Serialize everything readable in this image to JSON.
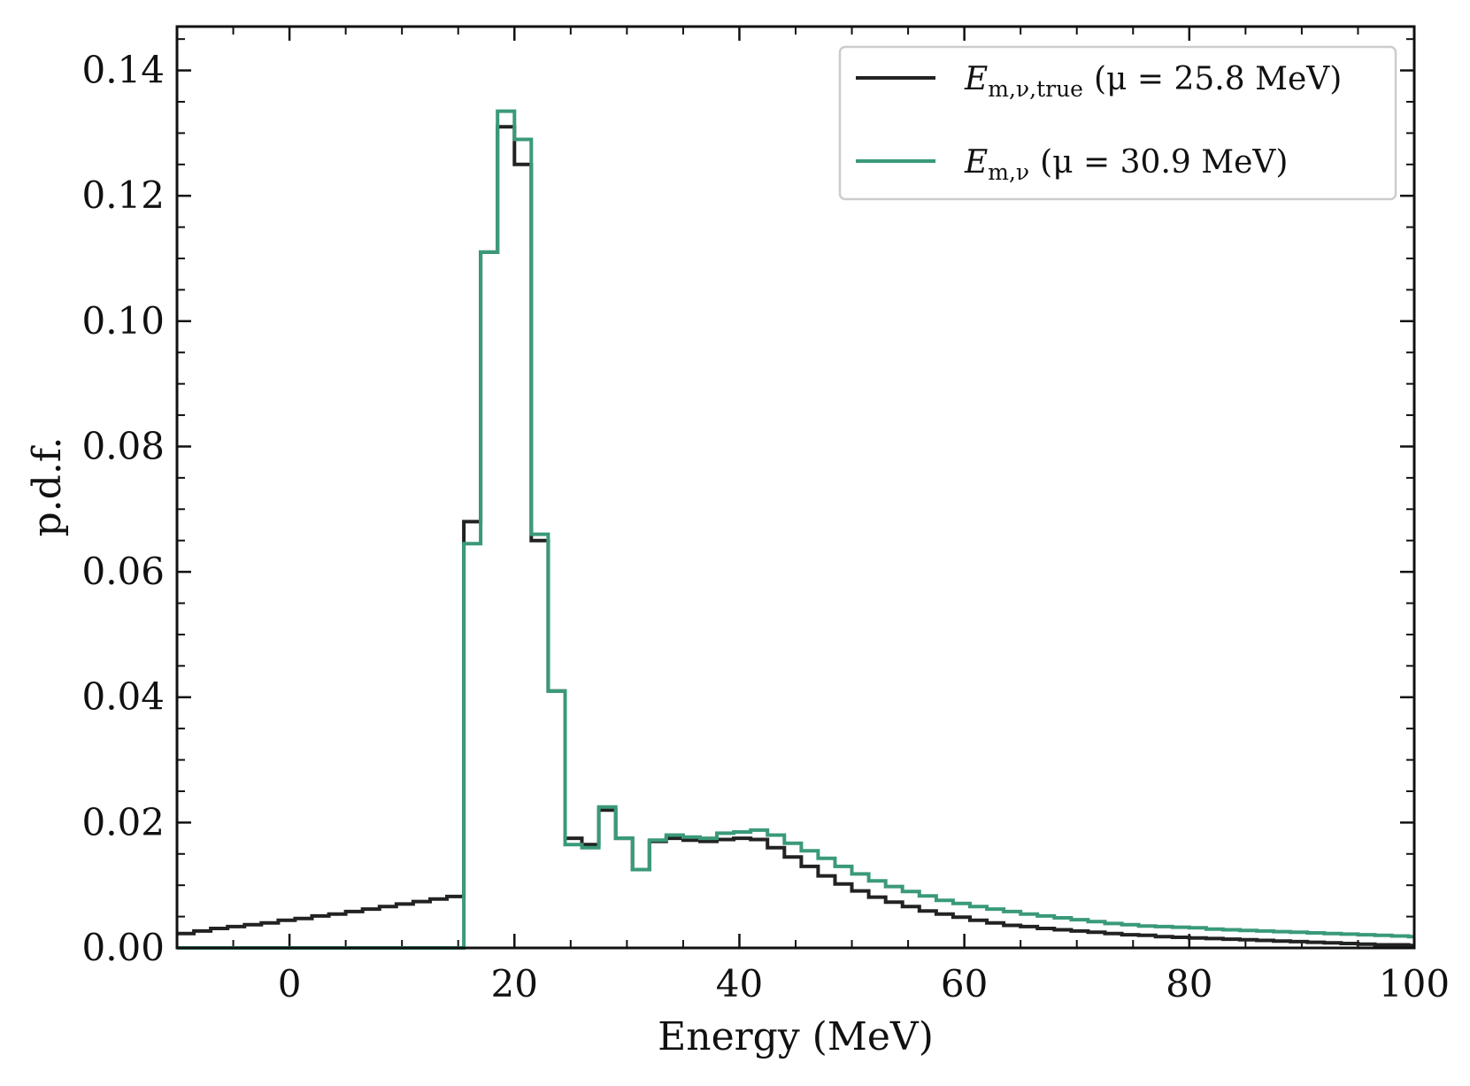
{
  "chart_data": {
    "type": "line",
    "title": "",
    "xlabel": "Energy (MeV)",
    "ylabel": "p.d.f.",
    "xlim": [
      -10,
      100
    ],
    "ylim": [
      0,
      0.147
    ],
    "xticks": [
      0,
      20,
      40,
      60,
      80,
      100
    ],
    "xtick_labels": [
      "0",
      "20",
      "40",
      "60",
      "80",
      "100"
    ],
    "yticks": [
      0.0,
      0.02,
      0.04,
      0.06,
      0.08,
      0.1,
      0.12,
      0.14
    ],
    "ytick_labels": [
      "0.00",
      "0.02",
      "0.04",
      "0.06",
      "0.08",
      "0.10",
      "0.12",
      "0.14"
    ],
    "grid": false,
    "legend_position": "top-right",
    "bin_width": 1.5,
    "series": [
      {
        "name": "E_m,ν,true (μ = 25.8 MeV)",
        "legend_main": "E",
        "legend_sub": "m,ν,true",
        "legend_rest": "(μ = 25.8 MeV)",
        "color": "#222222",
        "step": "post",
        "bin_edges_start": -10,
        "values": [
          0.0023,
          0.0027,
          0.0031,
          0.0034,
          0.0037,
          0.004,
          0.0044,
          0.0047,
          0.0051,
          0.0054,
          0.0058,
          0.0062,
          0.0066,
          0.007,
          0.0074,
          0.0078,
          0.0082,
          0.068,
          0.111,
          0.131,
          0.125,
          0.065,
          0.041,
          0.0175,
          0.0165,
          0.022,
          0.0175,
          0.0125,
          0.017,
          0.0175,
          0.0172,
          0.017,
          0.0173,
          0.0175,
          0.0173,
          0.016,
          0.0145,
          0.013,
          0.0115,
          0.0102,
          0.0091,
          0.0081,
          0.0073,
          0.0066,
          0.0059,
          0.0054,
          0.0049,
          0.0044,
          0.004,
          0.0036,
          0.0034,
          0.0031,
          0.0029,
          0.0027,
          0.0025,
          0.0023,
          0.0021,
          0.002,
          0.0018,
          0.0017,
          0.0016,
          0.0015,
          0.0014,
          0.0013,
          0.0012,
          0.0011,
          0.001,
          0.0009,
          0.0008,
          0.0007,
          0.0006,
          0.0005,
          0.0005,
          0.0004
        ]
      },
      {
        "name": "E_m,ν (μ = 30.9 MeV)",
        "legend_main": "E",
        "legend_sub": "m,ν",
        "legend_rest": "(μ = 30.9 MeV)",
        "color": "#3a9a78",
        "step": "post",
        "bin_edges_start": -10,
        "values": [
          0,
          0,
          0,
          0,
          0,
          0,
          0,
          0,
          0,
          0,
          0,
          0,
          0,
          0,
          0,
          0,
          0,
          0.0645,
          0.111,
          0.1335,
          0.129,
          0.066,
          0.041,
          0.0165,
          0.016,
          0.0225,
          0.0175,
          0.0125,
          0.0172,
          0.018,
          0.0177,
          0.0175,
          0.0183,
          0.0185,
          0.0188,
          0.018,
          0.0167,
          0.0155,
          0.0143,
          0.013,
          0.0118,
          0.0107,
          0.0098,
          0.009,
          0.0083,
          0.0076,
          0.0071,
          0.0066,
          0.0062,
          0.0058,
          0.0054,
          0.0051,
          0.0048,
          0.0045,
          0.0042,
          0.0039,
          0.0037,
          0.0035,
          0.0034,
          0.0033,
          0.0032,
          0.003,
          0.0029,
          0.0028,
          0.0027,
          0.0026,
          0.0025,
          0.0024,
          0.0023,
          0.0022,
          0.0021,
          0.002,
          0.0019,
          0.0018
        ]
      }
    ]
  }
}
